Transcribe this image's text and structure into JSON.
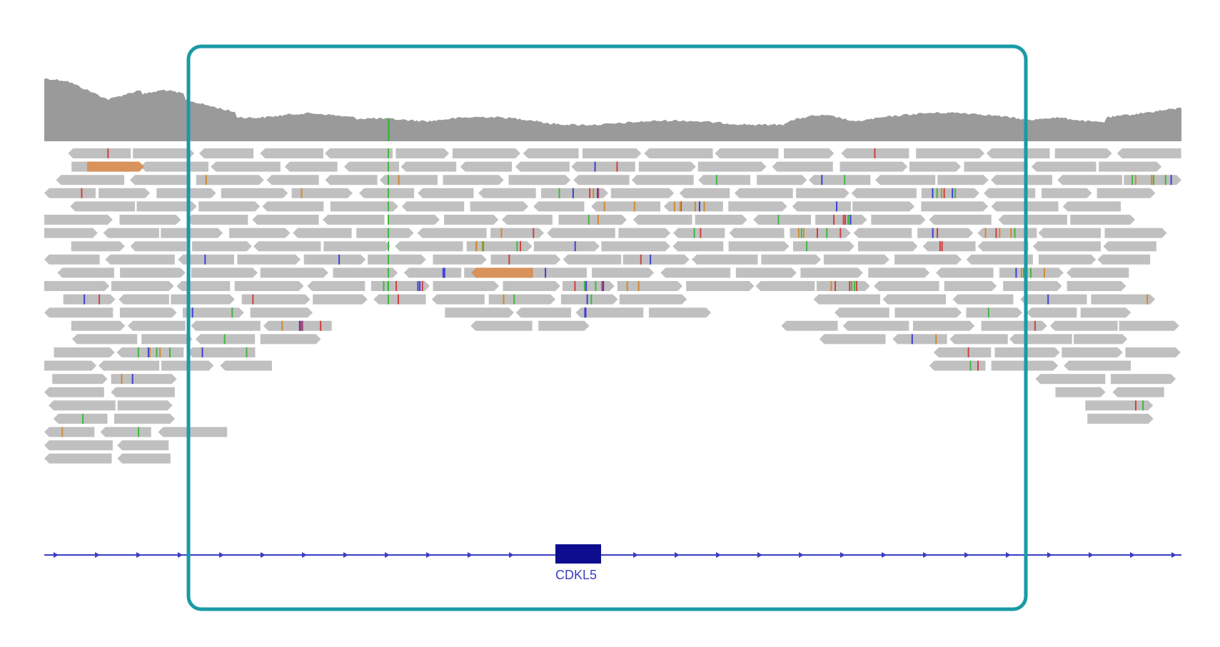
{
  "colors": {
    "background": "#ffffff",
    "coverage": "#9a9a9a",
    "read": "#c0c0c0",
    "soft_clip": "#d9925a",
    "gene": "#0d0d8f",
    "gene_line": "#3b3bc4",
    "highlight_box": "#1a9aa5",
    "mismatch_A": "#3fb83f",
    "mismatch_C": "#3f3fd9",
    "mismatch_G": "#d08a30",
    "mismatch_T": "#d04040"
  },
  "gene": {
    "name": "CDKL5",
    "strand": "+"
  },
  "tracks": {
    "coverage": "coverage-track",
    "alignments": "alignment-track",
    "annotation": "gene-annotation-track"
  }
}
